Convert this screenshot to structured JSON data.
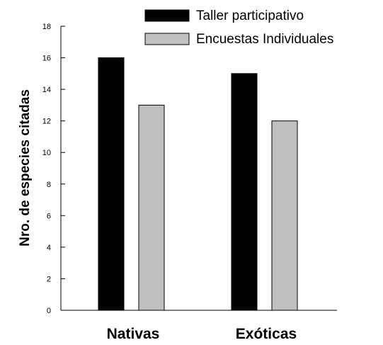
{
  "chart_data": {
    "type": "bar",
    "categories": [
      "Nativas",
      "Exóticas"
    ],
    "series": [
      {
        "name": "Taller participativo",
        "values": [
          16,
          15
        ],
        "color": "#000000"
      },
      {
        "name": "Encuestas Individuales",
        "values": [
          13,
          12
        ],
        "color": "#c0c0c0"
      }
    ],
    "ylabel": "Nro. de especies citadas",
    "xlabel": "",
    "ylim": [
      0,
      18
    ],
    "yticks": [
      "0",
      "2",
      "4",
      "6",
      "8",
      "10",
      "12",
      "14",
      "16",
      "18"
    ],
    "grid": false,
    "legend": "top-right"
  }
}
